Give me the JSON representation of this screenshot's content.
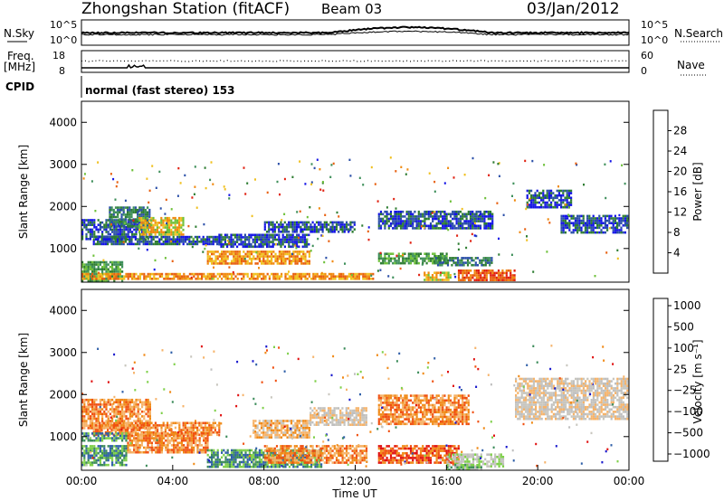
{
  "header": {
    "station": "Zhongshan Station (fitACF)",
    "beam": "Beam 03",
    "date": "03/Jan/2012"
  },
  "strips": {
    "nsky_label": "N.Sky",
    "nsky_ticks": [
      "10^5",
      "10^0"
    ],
    "nsearch_label": "N.Search",
    "nsearch_ticks": [
      "10^5",
      "10^0"
    ],
    "freq_label_1": "Freq.",
    "freq_label_2": "[MHz]",
    "freq_ticks": [
      "18",
      "8"
    ],
    "nave_label": "Nave",
    "nave_ticks": [
      "60",
      "0"
    ],
    "cpid_label": "CPID",
    "cpid_text": "normal (fast stereo) 153"
  },
  "colors": {
    "power_scale": [
      "#1414e6",
      "#2b4fa8",
      "#2e7d32",
      "#3e8f5a",
      "#6ec03a",
      "#f0c020",
      "#f08a10",
      "#e86010",
      "#e02010"
    ],
    "velocity_scale": [
      "#e01010",
      "#f05010",
      "#f08a18",
      "#f6b36a",
      "#c8c6be",
      "#bfbfbf",
      "#7fd04a",
      "#3c8c5a",
      "#2f5fa8",
      "#1818cc"
    ]
  },
  "chart_data": [
    {
      "type": "heatmap",
      "name": "power",
      "ylabel": "Slant Range [km]",
      "yticks": [
        "1000",
        "2000",
        "3000",
        "4000"
      ],
      "ylim": [
        200,
        4500
      ],
      "xlim": [
        "00:00",
        "24:00"
      ],
      "colorbar_label": "Power [dB]",
      "colorbar_ticks": [
        "4",
        "8",
        "12",
        "16",
        "20",
        "24",
        "28"
      ],
      "bands": [
        {
          "t": [
            0.0,
            1.8
          ],
          "r": [
            250,
            700
          ],
          "level": 3
        },
        {
          "t": [
            0.0,
            12.8
          ],
          "r": [
            300,
            420
          ],
          "level": 6
        },
        {
          "t": [
            0.0,
            3.0
          ],
          "r": [
            1200,
            1700
          ],
          "level": 1
        },
        {
          "t": [
            1.2,
            3.0
          ],
          "r": [
            1500,
            2000
          ],
          "level": 2
        },
        {
          "t": [
            2.5,
            4.5
          ],
          "r": [
            1350,
            1750
          ],
          "level": 5
        },
        {
          "t": [
            0.5,
            6.0
          ],
          "r": [
            1100,
            1300
          ],
          "level": 1
        },
        {
          "t": [
            5.5,
            10.0
          ],
          "r": [
            650,
            950
          ],
          "level": 6
        },
        {
          "t": [
            6.0,
            10.0
          ],
          "r": [
            1050,
            1350
          ],
          "level": 1
        },
        {
          "t": [
            8.0,
            12.0
          ],
          "r": [
            1400,
            1650
          ],
          "level": 1
        },
        {
          "t": [
            13.0,
            18.0
          ],
          "r": [
            1500,
            1900
          ],
          "level": 1
        },
        {
          "t": [
            13.0,
            16.0
          ],
          "r": [
            650,
            900
          ],
          "level": 3
        },
        {
          "t": [
            15.5,
            18.0
          ],
          "r": [
            600,
            800
          ],
          "level": 2
        },
        {
          "t": [
            16.5,
            19.0
          ],
          "r": [
            250,
            500
          ],
          "level": 7
        },
        {
          "t": [
            19.5,
            21.5
          ],
          "r": [
            2000,
            2400
          ],
          "level": 1
        },
        {
          "t": [
            21.0,
            24.0
          ],
          "r": [
            1400,
            1800
          ],
          "level": 1
        },
        {
          "t": [
            15.0,
            16.2
          ],
          "r": [
            250,
            450
          ],
          "level": 5
        }
      ]
    },
    {
      "type": "heatmap",
      "name": "velocity",
      "ylabel": "Slant Range [km]",
      "yticks": [
        "1000",
        "2000",
        "3000",
        "4000"
      ],
      "ylim": [
        200,
        4500
      ],
      "xlabel": "Time UT",
      "xticks": [
        "00:00",
        "04:00",
        "08:00",
        "12:00",
        "16:00",
        "20:00",
        "00:00"
      ],
      "xlim": [
        "00:00",
        "24:00"
      ],
      "colorbar_label": "Velocity [m s⁻¹]",
      "colorbar_ticks": [
        "1000",
        "500",
        "100",
        "25",
        "−25",
        "−100",
        "−500",
        "−1000"
      ],
      "bands": [
        {
          "t": [
            0.0,
            3.0
          ],
          "r": [
            1200,
            1900
          ],
          "level": 2
        },
        {
          "t": [
            0.0,
            2.0
          ],
          "r": [
            300,
            800
          ],
          "level": 7
        },
        {
          "t": [
            0.5,
            6.0
          ],
          "r": [
            1050,
            1350
          ],
          "level": 2
        },
        {
          "t": [
            2.0,
            5.5
          ],
          "r": [
            600,
            1100
          ],
          "level": 2
        },
        {
          "t": [
            5.5,
            10.5
          ],
          "r": [
            300,
            700
          ],
          "level": 7
        },
        {
          "t": [
            8.0,
            12.5
          ],
          "r": [
            400,
            800
          ],
          "level": 2
        },
        {
          "t": [
            7.5,
            10.0
          ],
          "r": [
            1000,
            1400
          ],
          "level": 3
        },
        {
          "t": [
            10.0,
            12.5
          ],
          "r": [
            1300,
            1700
          ],
          "level": 4
        },
        {
          "t": [
            13.0,
            17.0
          ],
          "r": [
            1300,
            2000
          ],
          "level": 2
        },
        {
          "t": [
            13.0,
            16.5
          ],
          "r": [
            400,
            800
          ],
          "level": 1
        },
        {
          "t": [
            16.0,
            18.5
          ],
          "r": [
            300,
            600
          ],
          "level": 5
        },
        {
          "t": [
            16.0,
            17.5
          ],
          "r": [
            200,
            350
          ],
          "level": 6
        },
        {
          "t": [
            19.0,
            24.0
          ],
          "r": [
            1400,
            2400
          ],
          "level": 4
        },
        {
          "t": [
            0.0,
            2.0
          ],
          "r": [
            900,
            1100
          ],
          "level": 7
        }
      ]
    }
  ]
}
